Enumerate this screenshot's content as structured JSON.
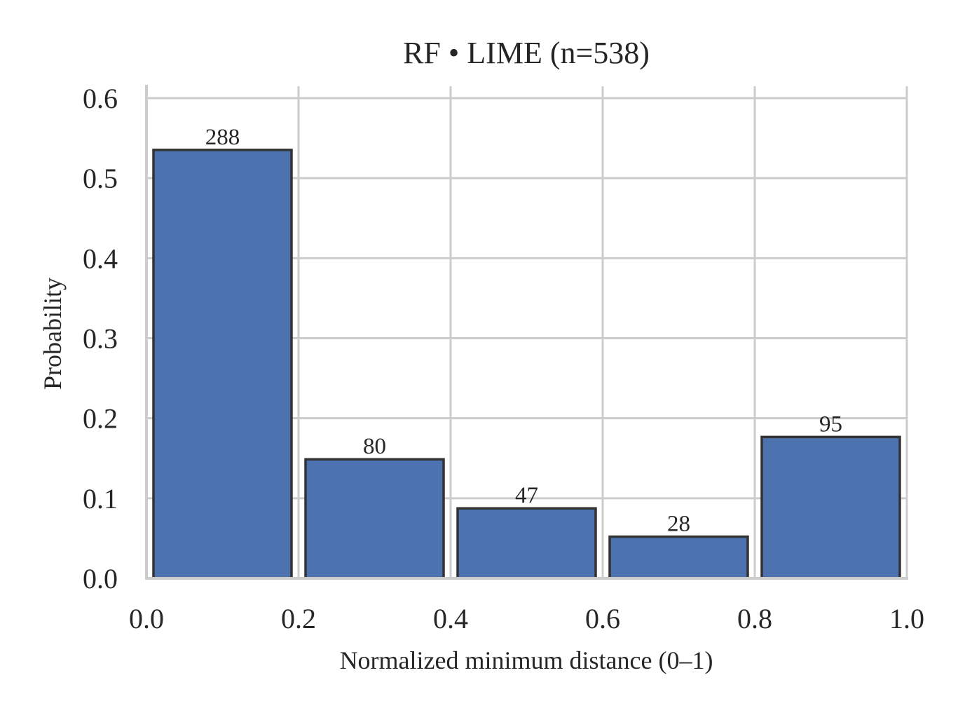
{
  "chart_data": {
    "type": "bar",
    "title": "RF • LIME  (n=538)",
    "xlabel": "Normalized minimum distance (0–1)",
    "ylabel": "Probability",
    "bins": [
      [
        0.0,
        0.2
      ],
      [
        0.2,
        0.4
      ],
      [
        0.4,
        0.6
      ],
      [
        0.6,
        0.8
      ],
      [
        0.8,
        1.0
      ]
    ],
    "values": [
      0.5353,
      0.1487,
      0.0874,
      0.052,
      0.1766
    ],
    "counts": [
      288,
      80,
      47,
      28,
      95
    ],
    "xlim": [
      0.0,
      1.0
    ],
    "ylim": [
      0.0,
      0.6
    ],
    "xticks": [
      "0.0",
      "0.2",
      "0.4",
      "0.6",
      "0.8",
      "1.0"
    ],
    "yticks": [
      "0.0",
      "0.1",
      "0.2",
      "0.3",
      "0.4",
      "0.5",
      "0.6"
    ],
    "grid": true,
    "bar_color": "#4c72b0",
    "edge_color": "#333333"
  }
}
